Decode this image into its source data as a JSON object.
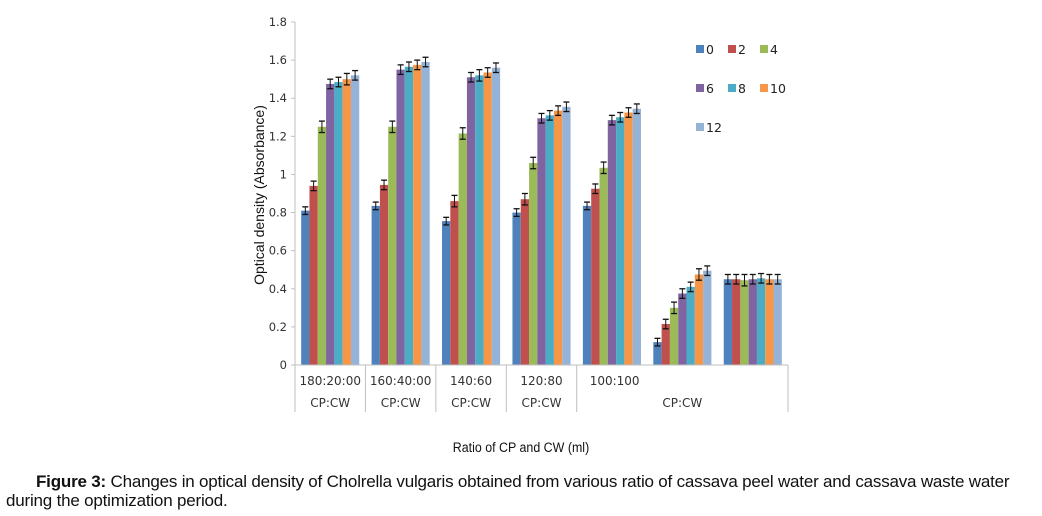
{
  "chart_data": {
    "type": "bar",
    "title": "",
    "xlabel": "Ratio of CP and CW (ml)",
    "ylabel": "Optical density (Absorbance)",
    "ylim": [
      0,
      1.8
    ],
    "yticks": [
      "0",
      "0.2",
      "0.4",
      "0.6",
      "0.8",
      "1",
      "1.2",
      "1.4",
      "1.6",
      "1.8"
    ],
    "ytick_values": [
      0,
      0.2,
      0.4,
      0.6,
      0.8,
      1.0,
      1.2,
      1.4,
      1.6,
      1.8
    ],
    "grid": false,
    "legend_position": "top-right",
    "categories": [
      {
        "ratio": "180:20:00",
        "unit": "CP:CW"
      },
      {
        "ratio": "160:40:00",
        "unit": "CP:CW"
      },
      {
        "ratio": "140:60",
        "unit": "CP:CW"
      },
      {
        "ratio": "120:80",
        "unit": "CP:CW"
      },
      {
        "ratio": "100:100",
        "unit": "CP:CW"
      },
      {
        "ratio": "",
        "unit": ""
      },
      {
        "ratio": "",
        "unit": ""
      }
    ],
    "merged_unit_label": {
      "label": "CP:CW",
      "span_categories": [
        4,
        6
      ]
    },
    "series": [
      {
        "name": "0",
        "color": "#4f81bd",
        "values": [
          0.81,
          0.835,
          0.755,
          0.8,
          0.835,
          0.12,
          0.45
        ],
        "errors": [
          0.02,
          0.02,
          0.02,
          0.02,
          0.02,
          0.02,
          0.025
        ]
      },
      {
        "name": "2",
        "color": "#c0504d",
        "values": [
          0.94,
          0.945,
          0.86,
          0.87,
          0.925,
          0.215,
          0.45
        ],
        "errors": [
          0.025,
          0.025,
          0.03,
          0.03,
          0.025,
          0.025,
          0.025
        ]
      },
      {
        "name": "4",
        "color": "#9bbb59",
        "values": [
          1.25,
          1.25,
          1.215,
          1.06,
          1.035,
          0.3,
          0.445
        ],
        "errors": [
          0.03,
          0.03,
          0.03,
          0.03,
          0.03,
          0.03,
          0.03
        ]
      },
      {
        "name": "6",
        "color": "#8064a2",
        "values": [
          1.475,
          1.55,
          1.51,
          1.295,
          1.285,
          0.375,
          0.45
        ],
        "errors": [
          0.025,
          0.025,
          0.025,
          0.025,
          0.025,
          0.025,
          0.025
        ]
      },
      {
        "name": "8",
        "color": "#4bacc6",
        "values": [
          1.485,
          1.565,
          1.52,
          1.31,
          1.3,
          0.41,
          0.455
        ],
        "errors": [
          0.025,
          0.025,
          0.03,
          0.025,
          0.025,
          0.025,
          0.025
        ]
      },
      {
        "name": "10",
        "color": "#f79646",
        "values": [
          1.5,
          1.575,
          1.535,
          1.335,
          1.325,
          0.475,
          0.45
        ],
        "errors": [
          0.03,
          0.025,
          0.025,
          0.025,
          0.025,
          0.03,
          0.025
        ]
      },
      {
        "name": "12",
        "color": "#95b3d7",
        "values": [
          1.52,
          1.59,
          1.56,
          1.355,
          1.345,
          0.495,
          0.45
        ],
        "errors": [
          0.025,
          0.025,
          0.025,
          0.025,
          0.025,
          0.025,
          0.025
        ]
      }
    ]
  },
  "caption": {
    "label": "Figure 3:",
    "text": " Changes in optical density of Cholrella vulgaris obtained from various ratio of cassava peel water and cassava waste water during the optimization period."
  }
}
